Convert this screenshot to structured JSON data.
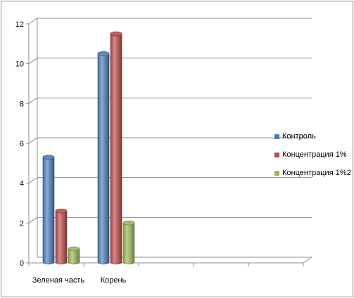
{
  "chart_data": {
    "type": "bar",
    "style": "3d-cylinder",
    "categories": [
      "Зеленая часть",
      "Корень",
      "",
      "",
      ""
    ],
    "series": [
      {
        "name": "Контроль",
        "values": [
          5.2,
          10.4,
          null,
          null,
          null
        ],
        "color": "#4a7ebb"
      },
      {
        "name": "Концентрация 1%",
        "values": [
          2.5,
          11.4,
          null,
          null,
          null
        ],
        "color": "#be4b48"
      },
      {
        "name": "Концентрация 1%2",
        "values": [
          0.6,
          1.9,
          null,
          null,
          null
        ],
        "color": "#98b954"
      }
    ],
    "yticks": [
      "0",
      "2",
      "4",
      "6",
      "8",
      "10",
      "12"
    ],
    "ylim": [
      0,
      12
    ],
    "grid": true,
    "legend": "right",
    "title": "",
    "xlabel": "",
    "ylabel": ""
  }
}
